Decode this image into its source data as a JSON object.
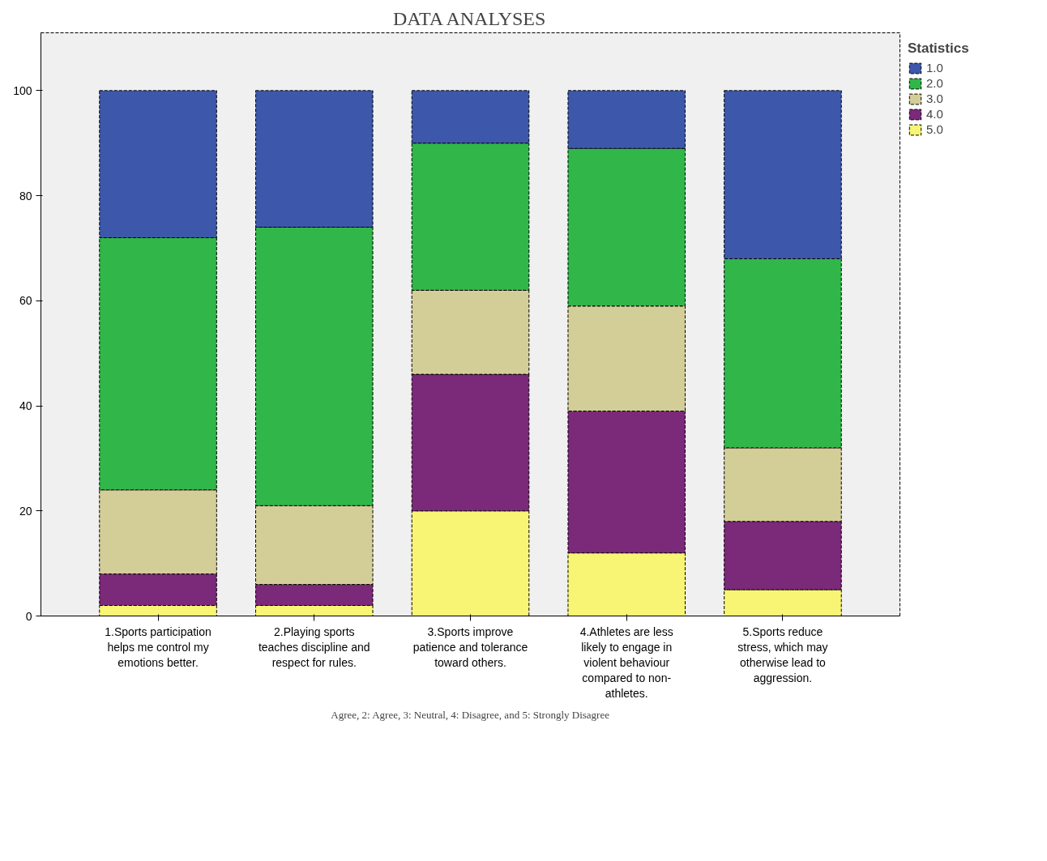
{
  "chart_data": {
    "type": "bar",
    "title": "DATA ANALYSES",
    "stacked": true,
    "categories": [
      "1.Sports participation helps me control my emotions better.",
      "2.Playing sports teaches discipline and respect for rules.",
      "3.Sports improve patience and tolerance toward others.",
      "4.Athletes are less likely to engage in violent behaviour compared to non-athletes.",
      "5.Sports reduce stress, which may otherwise lead to aggression."
    ],
    "series": [
      {
        "name": "5.0",
        "color": "#f8f574",
        "values": [
          2,
          2,
          20,
          12,
          5
        ]
      },
      {
        "name": "4.0",
        "color": "#7b2979",
        "values": [
          6,
          4,
          26,
          27,
          13
        ]
      },
      {
        "name": "3.0",
        "color": "#d3ce97",
        "values": [
          16,
          15,
          16,
          20,
          14
        ]
      },
      {
        "name": "2.0",
        "color": "#31b64a",
        "values": [
          48,
          53,
          28,
          30,
          36
        ]
      },
      {
        "name": "1.0",
        "color": "#3d58aa",
        "values": [
          28,
          26,
          10,
          11,
          32
        ]
      }
    ],
    "ylim": [
      0,
      111
    ],
    "yticks": [
      0,
      20,
      40,
      60,
      80,
      100
    ],
    "grid": false,
    "legend": "top right",
    "legend_title": "Statistics",
    "annotations": [
      "Agree, 2: Agree, 3: Neutral, 4: Disagree, and 5: Strongly Disagree"
    ]
  }
}
